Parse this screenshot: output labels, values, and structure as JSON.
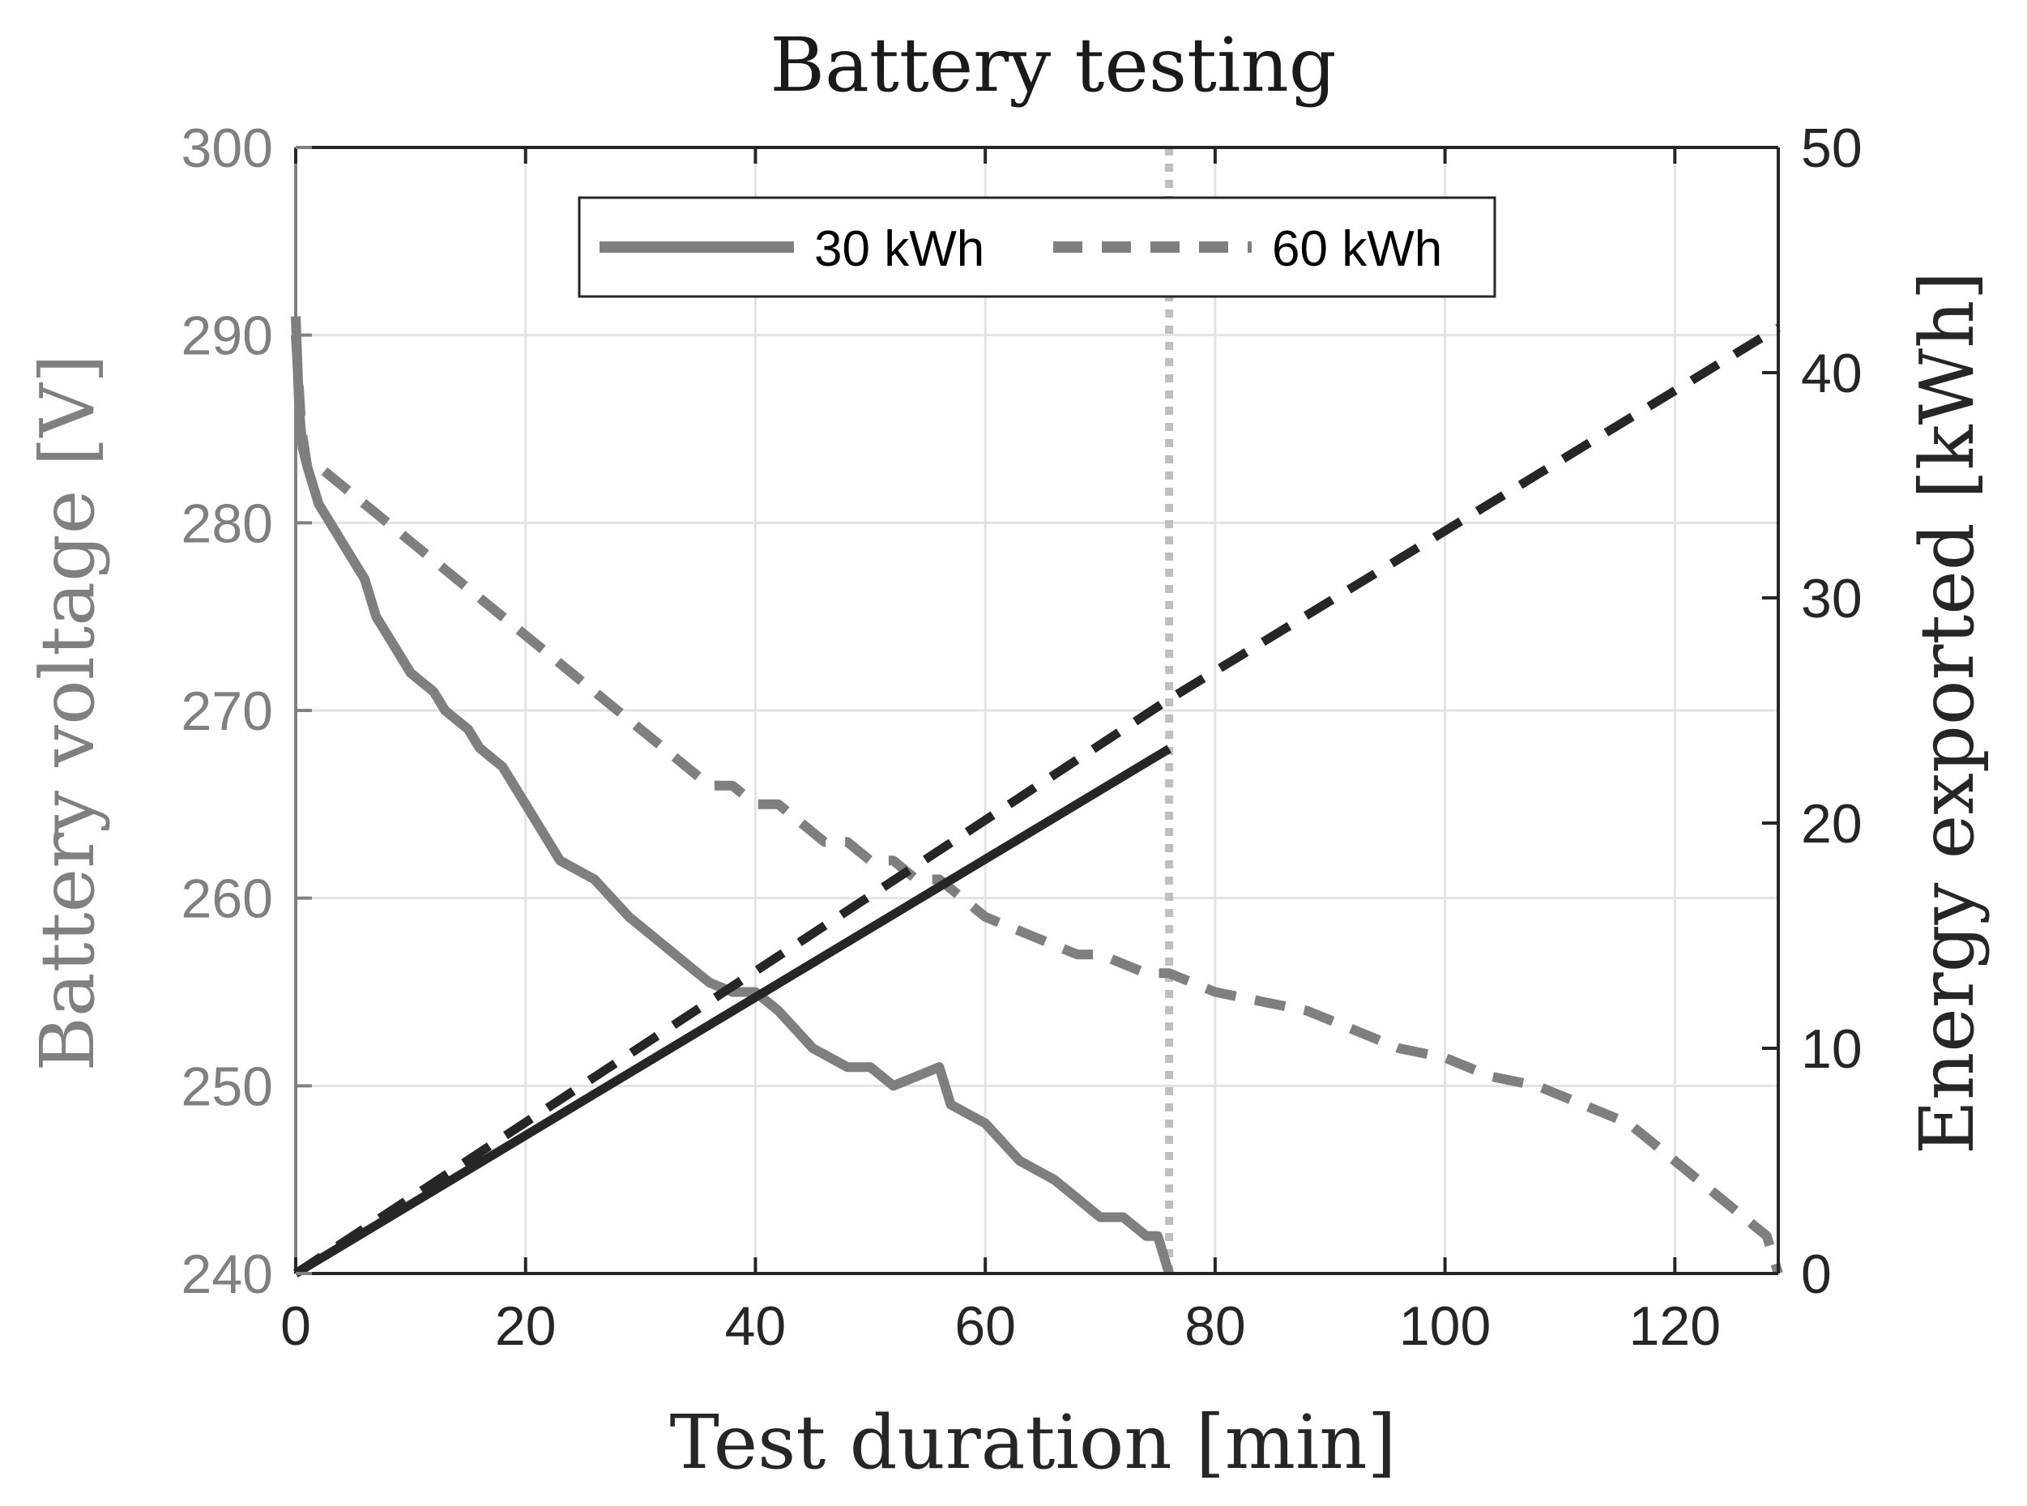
{
  "chart_data": {
    "type": "line",
    "title": "Battery testing",
    "xlabel": "Test duration [min]",
    "ylabel_left": "Battery voltage [V]",
    "ylabel_right": "Energy exported [kWh]",
    "xlim": [
      0,
      129
    ],
    "ylim_left": [
      240,
      300
    ],
    "ylim_right": [
      0,
      50
    ],
    "x_ticks": [
      0,
      20,
      40,
      60,
      80,
      100,
      120
    ],
    "y_left_ticks": [
      240,
      250,
      260,
      270,
      280,
      290,
      300
    ],
    "y_right_ticks": [
      0,
      10,
      20,
      30,
      40,
      50
    ],
    "grid": true,
    "legend": {
      "location": "top-center",
      "entries": [
        {
          "label": "30 kWh",
          "style": "solid"
        },
        {
          "label": "60 kWh",
          "style": "dashed"
        }
      ]
    },
    "colors": {
      "voltage": "#7f7f7f",
      "energy": "#262626",
      "marker_line": "#bfbfbf",
      "grid": "#e3e3e3",
      "left_axis": "#808080",
      "right_axis": "#262626"
    },
    "reference_line": {
      "x": 76,
      "style": "dotted"
    },
    "series": [
      {
        "name": "30 kWh voltage",
        "axis": "left",
        "style": "solid",
        "x": [
          0,
          0.3,
          0.6,
          1,
          2,
          4,
          6,
          7,
          8,
          10,
          12,
          13,
          15,
          16,
          18,
          20,
          23,
          26,
          29,
          32,
          34,
          36,
          38,
          40,
          42,
          45,
          48,
          50,
          52,
          54,
          56,
          57,
          60,
          63,
          66,
          68,
          70,
          72,
          74,
          75,
          76
        ],
        "values": [
          291,
          286,
          284,
          283,
          281,
          279,
          277,
          275,
          274,
          272,
          271,
          270,
          269,
          268,
          267,
          265,
          262,
          261,
          259,
          257.5,
          256.5,
          255.5,
          255,
          255,
          254,
          252,
          251,
          251,
          250,
          250.5,
          251,
          249,
          248,
          246,
          245,
          244,
          243,
          243,
          242,
          242,
          240
        ]
      },
      {
        "name": "60 kWh voltage",
        "axis": "left",
        "style": "dashed",
        "x": [
          0,
          0.5,
          1,
          2,
          4,
          6,
          8,
          10,
          12,
          14,
          16,
          18,
          20,
          22,
          24,
          26,
          28,
          30,
          32,
          34,
          36,
          38,
          40,
          42,
          44,
          46,
          48,
          50,
          52,
          54,
          56,
          58,
          60,
          62,
          64,
          66,
          68,
          70,
          72,
          74,
          76,
          78,
          80,
          84,
          88,
          92,
          96,
          100,
          104,
          108,
          112,
          116,
          120,
          124,
          128,
          129
        ],
        "values": [
          290,
          285,
          283,
          283,
          282,
          281,
          280,
          279,
          278,
          277,
          276,
          275,
          274,
          273,
          272,
          271,
          270,
          269,
          268,
          267,
          266,
          266,
          265,
          265,
          264,
          263,
          263,
          262,
          262,
          261,
          261,
          260,
          259,
          258.5,
          258,
          257.5,
          257,
          257,
          256.5,
          256,
          256,
          255.5,
          255,
          254.5,
          254,
          253,
          252,
          251.5,
          250.5,
          250,
          249,
          248,
          246,
          244,
          242,
          240
        ]
      },
      {
        "name": "30 kWh energy",
        "axis": "right",
        "style": "solid",
        "x": [
          0,
          76
        ],
        "values": [
          0,
          23.3
        ]
      },
      {
        "name": "60 kWh energy",
        "axis": "right",
        "style": "dashed",
        "x": [
          0,
          76,
          129
        ],
        "values": [
          0,
          25.5,
          42
        ]
      }
    ]
  }
}
